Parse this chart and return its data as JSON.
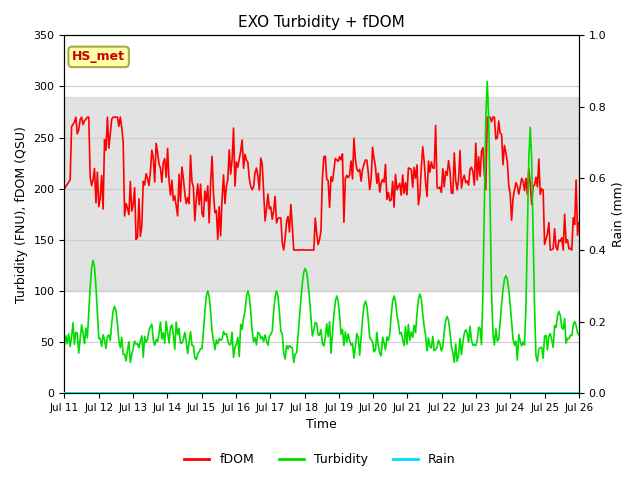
{
  "title": "EXO Turbidity + fDOM",
  "xlabel": "Time",
  "ylabel_left": "Turbidity (FNU), fDOM (QSU)",
  "ylabel_right": "Rain (mm)",
  "ylim_left": [
    0,
    350
  ],
  "ylim_right": [
    0,
    1.0
  ],
  "x_tick_labels": [
    "Jul 11",
    "Jul 12",
    "Jul 13",
    "Jul 14",
    "Jul 15",
    "Jul 16",
    "Jul 17",
    "Jul 18",
    "Jul 19",
    "Jul 20",
    "Jul 21",
    "Jul 22",
    "Jul 23",
    "Jul 24",
    "Jul 25",
    "Jul 26"
  ],
  "fdom_color": "#ff0000",
  "turbidity_color": "#00dd00",
  "rain_color": "#00ddff",
  "shaded_band": [
    100,
    290
  ],
  "annotation_label": "HS_met",
  "annotation_color": "#cc0000",
  "annotation_bg": "#ffffaa",
  "annotation_border": "#aaaa44",
  "legend_labels": [
    "fDOM",
    "Turbidity",
    "Rain"
  ],
  "legend_colors": [
    "#ff0000",
    "#00dd00",
    "#00ddff"
  ],
  "background_color": "#ffffff",
  "axes_facecolor": "#ffffff",
  "grid_color": "#cccccc",
  "fdom_linewidth": 1.2,
  "turb_linewidth": 1.2,
  "rain_linewidth": 1.5
}
